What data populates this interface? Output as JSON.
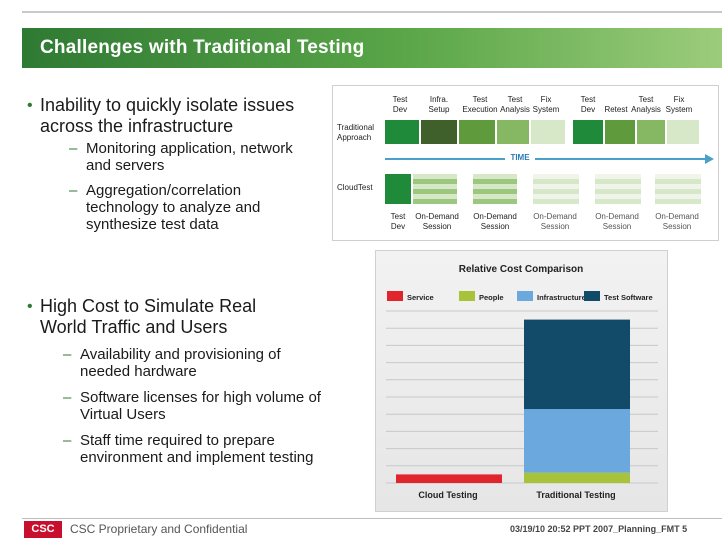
{
  "slide": {
    "title": "Challenges with Traditional Testing",
    "bullet1": "Inability to quickly isolate issues across the infrastructure",
    "bullet1_subs": [
      "Monitoring application, network and servers",
      "Aggregation/correlation technology to analyze and synthesize test data"
    ],
    "bullet2": "High Cost to Simulate Real World Traffic and Users",
    "bullet2_subs": [
      "Availability and provisioning of needed hardware",
      "Software licenses for high volume of Virtual Users",
      "Staff time required to prepare environment and implement testing"
    ]
  },
  "diagram": {
    "top_labels": [
      "Test Dev",
      "Infra. Setup",
      "Test Execution",
      "Test Analysis",
      "Fix System",
      "Test Dev",
      "Retest",
      "Test Analysis",
      "Fix System"
    ],
    "row1_label": "Traditional Approach",
    "row2_label": "CloudTest",
    "time_label": "TIME",
    "bottom_labels": [
      "Test Dev",
      "On-Demand Session",
      "On-Demand Session",
      "On-Demand Session",
      "On-Demand Session",
      "On-Demand Session"
    ]
  },
  "chart_data": {
    "type": "bar",
    "title": "Relative Cost Comparison",
    "categories": [
      "Cloud Testing",
      "Traditional Testing"
    ],
    "series": [
      {
        "name": "Service",
        "color": "#e0262c",
        "values": [
          5,
          0
        ]
      },
      {
        "name": "People",
        "color": "#a8c33a",
        "values": [
          0,
          6
        ]
      },
      {
        "name": "Infrastructure",
        "color": "#6aa8de",
        "values": [
          0,
          37
        ]
      },
      {
        "name": "Test Software",
        "color": "#124a69",
        "values": [
          0,
          52
        ]
      }
    ],
    "ylim": [
      0,
      100
    ]
  },
  "footer": {
    "logo": "CSC",
    "left": "CSC Proprietary and Confidential",
    "right": "03/19/10 20:52   PPT 2007_Planning_FMT  5"
  }
}
